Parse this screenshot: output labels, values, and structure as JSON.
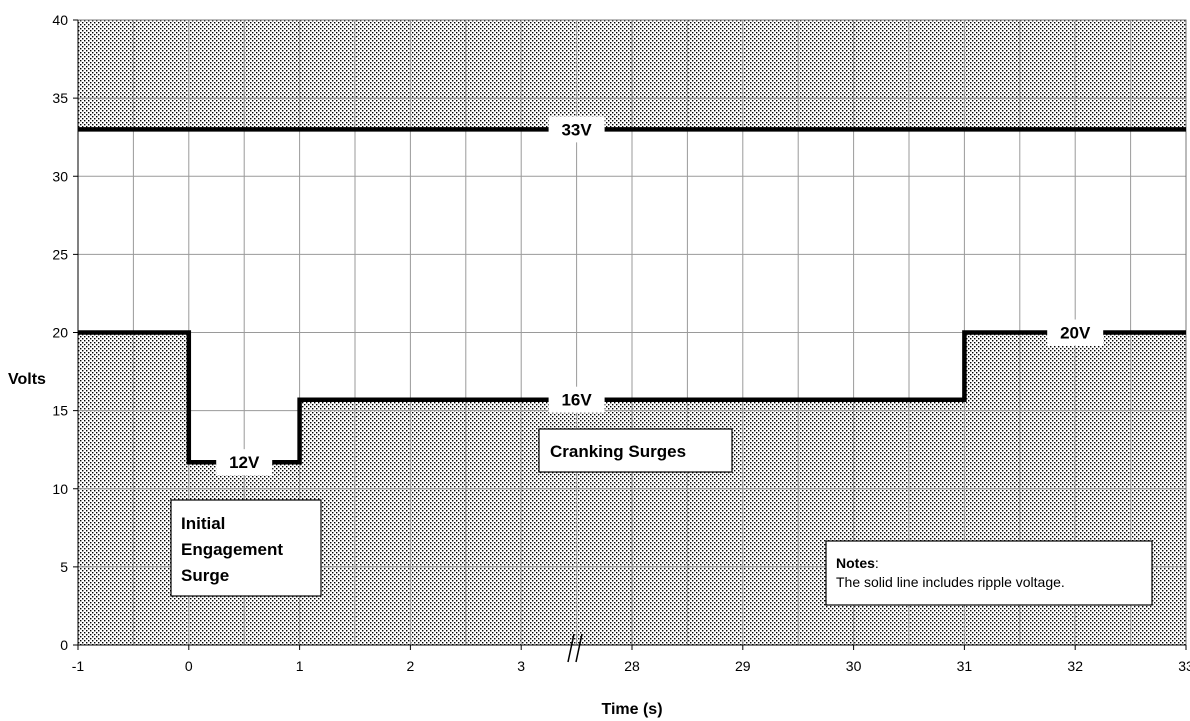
{
  "chart_data": {
    "type": "line",
    "xlabel": "Time (s)",
    "ylabel": "Volts",
    "ylim": [
      0,
      40
    ],
    "yticks": [
      "0",
      "5",
      "10",
      "15",
      "20",
      "25",
      "30",
      "35",
      "40"
    ],
    "xticks": [
      "-1",
      "0",
      "1",
      "2",
      "3",
      "28",
      "29",
      "30",
      "31",
      "32",
      "33"
    ],
    "axis_break": "between 3 and 28",
    "grid": true,
    "shaded_regions": "outside the allowed envelope (above 33V and below the lower limit) are dotted",
    "series": [
      {
        "x": [
          "-1",
          "0",
          "0",
          "1",
          "1",
          "3",
          "28",
          "31",
          "31",
          "33"
        ],
        "values": [
          20,
          20,
          11.7,
          11.7,
          15.7,
          15.7,
          15.7,
          15.7,
          20,
          20
        ]
      },
      {
        "x": [
          "-1",
          "33"
        ],
        "values": [
          33,
          33
        ]
      }
    ],
    "level_labels": [
      {
        "text": "33V",
        "x": "27.5",
        "y": 33
      },
      {
        "text": "12V",
        "x": "0.5",
        "y": 11.7
      },
      {
        "text": "16V",
        "x": "27.5",
        "y": 15.7
      },
      {
        "text": "20V",
        "x": "32",
        "y": 20
      }
    ],
    "annotations": {
      "initial_engagement": [
        "Initial",
        "Engagement",
        "Surge"
      ],
      "cranking": "Cranking Surges",
      "notes_title": "Notes",
      "notes_colon": ":",
      "notes_body": "The solid line includes ripple voltage."
    }
  }
}
